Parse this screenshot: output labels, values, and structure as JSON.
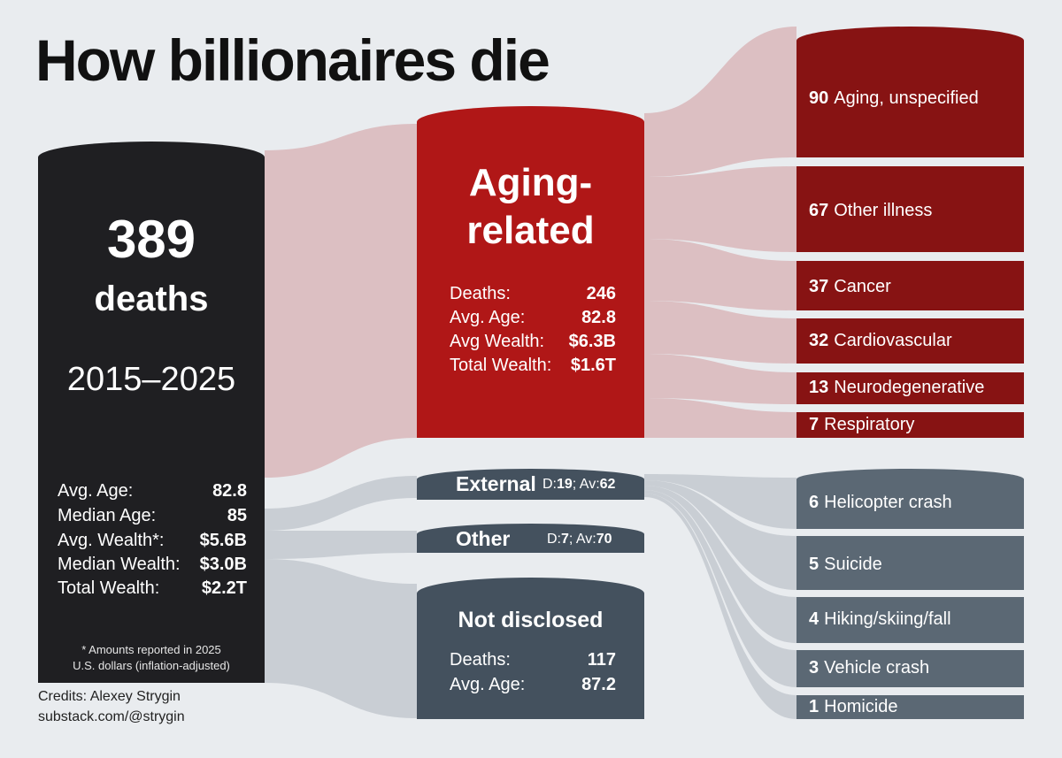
{
  "title": "How billionaires die",
  "total": {
    "count": "389",
    "unit": "deaths",
    "period": "2015–2025",
    "stats": [
      {
        "label": "Avg. Age:",
        "value": "82.8"
      },
      {
        "label": "Median Age:",
        "value": "85"
      },
      {
        "label": "Avg. Wealth*:",
        "value": "$5.6B"
      },
      {
        "label": "Median Wealth:",
        "value": "$3.0B"
      },
      {
        "label": "Total Wealth:",
        "value": "$2.2T"
      }
    ],
    "footnote_1": "* Amounts reported in 2025",
    "footnote_2": "U.S. dollars (inflation-adjusted)"
  },
  "credits": {
    "line1": "Credits: Alexey Strygin",
    "line2": "substack.com/@strygin"
  },
  "categories": {
    "aging": {
      "title_1": "Aging-",
      "title_2": "related",
      "stats": [
        {
          "label": "Deaths:",
          "value": "246"
        },
        {
          "label": "Avg. Age:",
          "value": "82.8"
        },
        {
          "label": "Avg Wealth:",
          "value": "$6.3B"
        },
        {
          "label": "Total Wealth:",
          "value": "$1.6T"
        }
      ]
    },
    "external": {
      "title": "External",
      "d_label": "D:",
      "d_value": "19",
      "sep": "; Av:",
      "av_value": "62"
    },
    "other": {
      "title": "Other",
      "d_label": "D:",
      "d_value": "7",
      "sep": "; Av:",
      "av_value": "70"
    },
    "undisclosed": {
      "title": "Not disclosed",
      "stats": [
        {
          "label": "Deaths:",
          "value": "117"
        },
        {
          "label": "Avg. Age:",
          "value": "87.2"
        }
      ]
    }
  },
  "causes": {
    "aging": [
      {
        "count": "90",
        "label": "Aging, unspecified"
      },
      {
        "count": "67",
        "label": "Other illness"
      },
      {
        "count": "37",
        "label": "Cancer"
      },
      {
        "count": "32",
        "label": "Cardiovascular"
      },
      {
        "count": "13",
        "label": "Neurodegenerative"
      },
      {
        "count": "7",
        "label": "Respiratory"
      }
    ],
    "external": [
      {
        "count": "6",
        "label": "Helicopter crash"
      },
      {
        "count": "5",
        "label": "Suicide"
      },
      {
        "count": "4",
        "label": "Hiking/skiing/fall"
      },
      {
        "count": "3",
        "label": "Vehicle crash"
      },
      {
        "count": "1",
        "label": "Homicide"
      }
    ]
  },
  "colors": {
    "background": "#e9ecef",
    "total": "#1f1f22",
    "aging": "#b01717",
    "aging_cause": "#871313",
    "slate": "#44515e",
    "external_cause": "#5b6874",
    "flow_red": "#dcbfc2",
    "flow_grey": "#c9ced4"
  }
}
